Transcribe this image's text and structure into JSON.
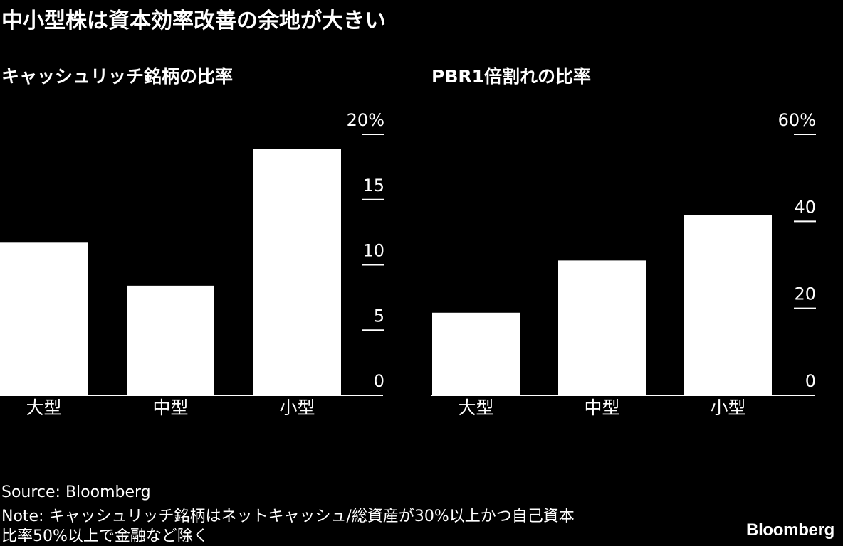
{
  "headline": "中小型株は資本効率改善の余地が大きい",
  "chart_data": [
    {
      "type": "bar",
      "title": "キャッシュリッチ銘柄の比率",
      "categories": [
        "大型",
        "中型",
        "小型"
      ],
      "values": [
        11.7,
        8.4,
        18.9
      ],
      "ylim": [
        0,
        20
      ],
      "yticks": [
        "0",
        "5",
        "10",
        "15",
        "20%"
      ],
      "axis_side": "right",
      "grid": false,
      "color": "#ffffff"
    },
    {
      "type": "bar",
      "title": "PBR1倍割れの比率",
      "categories": [
        "大型",
        "中型",
        "小型"
      ],
      "values": [
        19,
        31,
        41.5
      ],
      "ylim": [
        0,
        60
      ],
      "yticks": [
        "0",
        "20",
        "40",
        "60%"
      ],
      "axis_side": "right",
      "grid": false,
      "color": "#ffffff"
    }
  ],
  "footer": {
    "source": "Source: Bloomberg",
    "note_line1": "Note: キャッシュリッチ銘柄はネットキャッシュ/総資産が30%以上かつ自己資本",
    "note_line2": "比率50%以上で金融など除く"
  },
  "brand": "Bloomberg"
}
